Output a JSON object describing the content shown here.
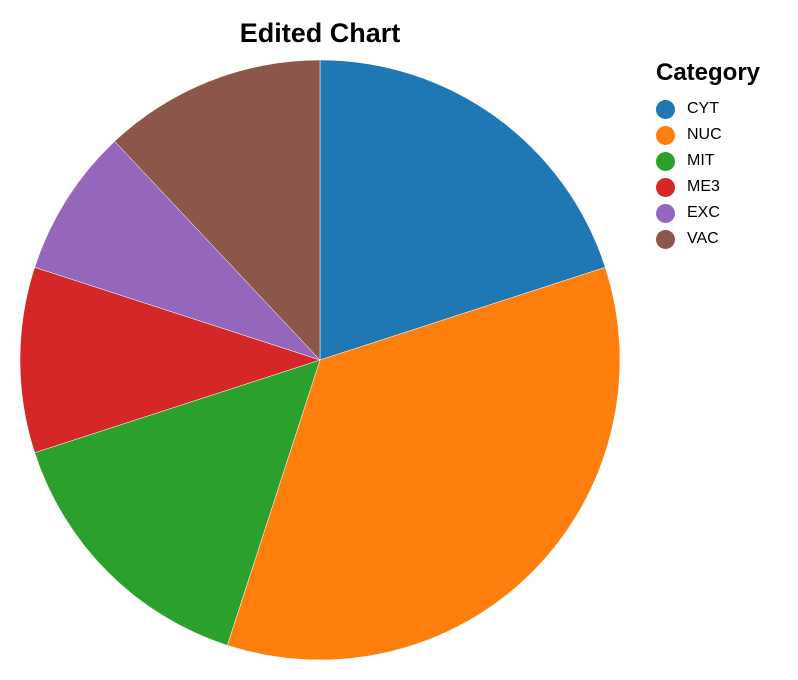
{
  "chart_data": {
    "type": "pie",
    "title": "Edited Chart",
    "legend_title": "Category",
    "legend_placement": "top-right",
    "categories": [
      "CYT",
      "NUC",
      "MIT",
      "ME3",
      "EXC",
      "VAC"
    ],
    "values": [
      20,
      35,
      15,
      10,
      8,
      12
    ],
    "colors": [
      "#1f77b4",
      "#ff7f0e",
      "#2ca02c",
      "#d62728",
      "#9467bd",
      "#8c564b"
    ]
  }
}
